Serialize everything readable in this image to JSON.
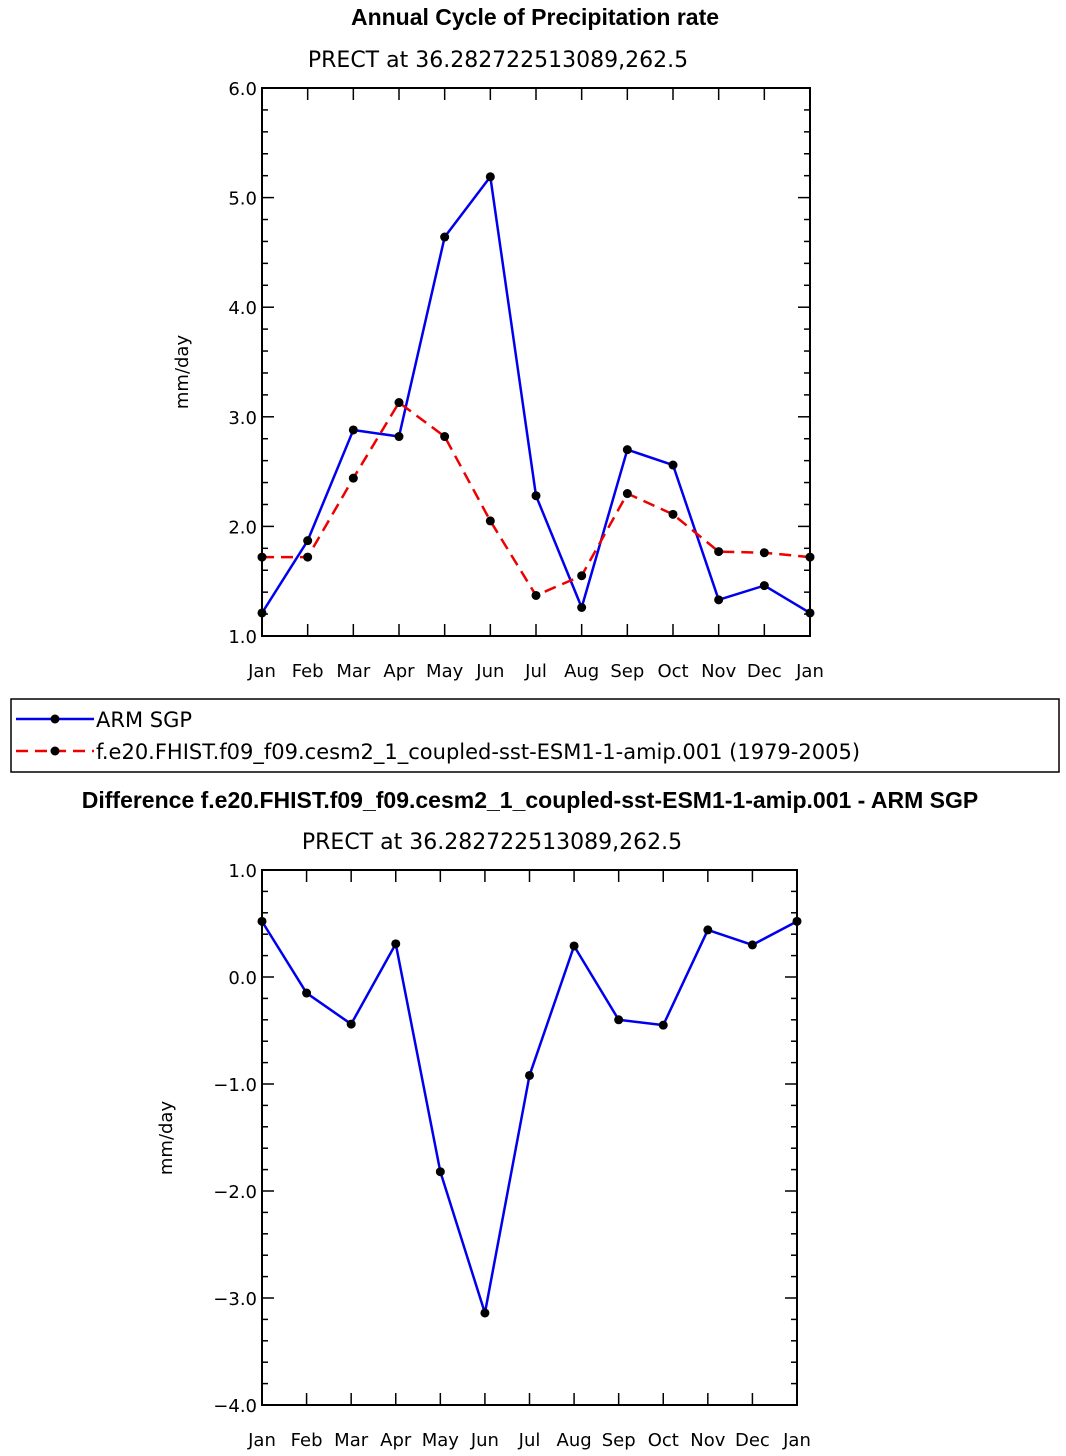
{
  "chart_data": [
    {
      "type": "line",
      "title": "Annual Cycle of Precipitation rate",
      "subtitle": "PRECT at 36.282722513089,262.5",
      "ylabel": "mm/day",
      "ylim": [
        1.0,
        6.0
      ],
      "yticks": [
        "1.0",
        "2.0",
        "3.0",
        "4.0",
        "5.0",
        "6.0"
      ],
      "categories": [
        "Jan",
        "Feb",
        "Mar",
        "Apr",
        "May",
        "Jun",
        "Jul",
        "Aug",
        "Sep",
        "Oct",
        "Nov",
        "Dec",
        "Jan"
      ],
      "series": [
        {
          "name": "ARM SGP",
          "color": "#0000ee",
          "dash": "solid",
          "values": [
            1.21,
            1.87,
            2.88,
            2.82,
            4.64,
            5.19,
            2.28,
            1.26,
            2.7,
            2.56,
            1.33,
            1.46,
            1.21
          ]
        },
        {
          "name": "f.e20.FHIST.f09_f09.cesm2_1_coupled-sst-ESM1-1-amip.001 (1979-2005)",
          "color": "#ee0000",
          "dash": "dashed",
          "values": [
            1.72,
            1.72,
            2.44,
            3.13,
            2.82,
            2.05,
            1.37,
            1.55,
            2.3,
            2.11,
            1.77,
            1.76,
            1.72
          ]
        }
      ],
      "legend": "below"
    },
    {
      "type": "line",
      "title": "Difference f.e20.FHIST.f09_f09.cesm2_1_coupled-sst-ESM1-1-amip.001 - ARM SGP",
      "subtitle": "PRECT at 36.282722513089,262.5",
      "ylabel": "mm/day",
      "ylim": [
        -4.0,
        1.0
      ],
      "yticks": [
        "-4.0",
        "-3.0",
        "-2.0",
        "-1.0",
        "0.0",
        "1.0"
      ],
      "categories": [
        "Jan",
        "Feb",
        "Mar",
        "Apr",
        "May",
        "Jun",
        "Jul",
        "Aug",
        "Sep",
        "Oct",
        "Nov",
        "Dec",
        "Jan"
      ],
      "series": [
        {
          "color": "#0000ee",
          "dash": "solid",
          "values": [
            0.52,
            -0.15,
            -0.44,
            0.31,
            -1.82,
            -3.14,
            -0.92,
            0.29,
            -0.4,
            -0.45,
            0.44,
            0.3,
            0.52
          ]
        }
      ]
    }
  ]
}
